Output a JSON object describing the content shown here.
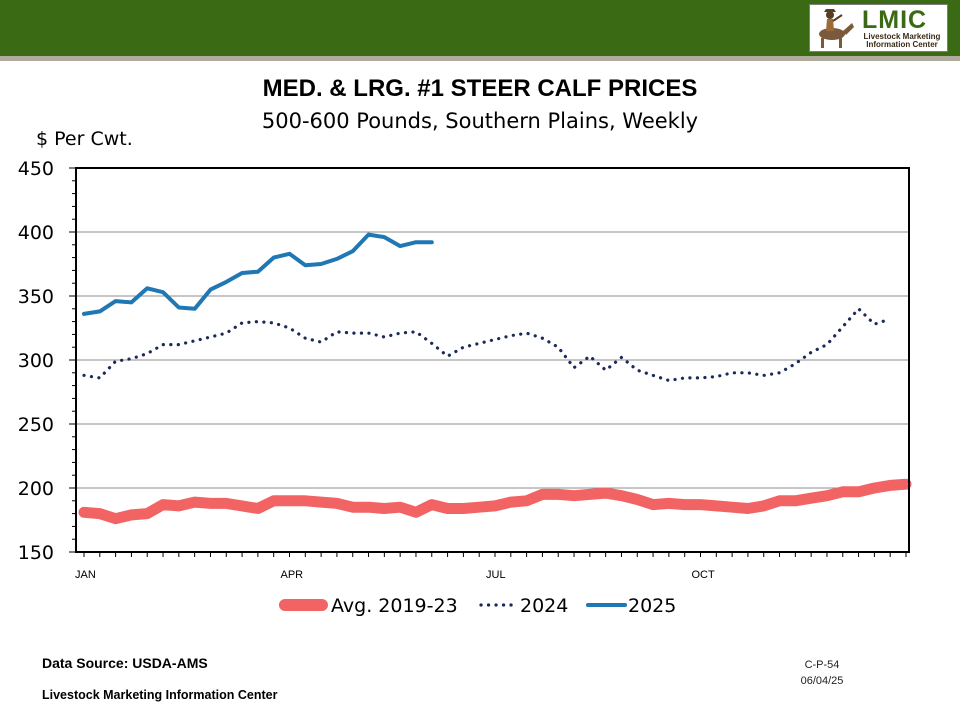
{
  "header": {
    "logo_text": "LMIC",
    "logo_subtitle": "Livestock Marketing Information Center",
    "bar_color": "#3b6a14"
  },
  "chart_data": {
    "type": "line",
    "title": "MED. & LRG. #1 STEER CALF PRICES",
    "subtitle": "500-600 Pounds, Southern Plains, Weekly",
    "ylabel": "$ Per Cwt.",
    "xlabel": "",
    "ylim": [
      150,
      450
    ],
    "yticks": [
      150,
      200,
      250,
      300,
      350,
      400,
      450
    ],
    "xlim": [
      1,
      53
    ],
    "xticks": [
      {
        "label": "JAN",
        "week": 1
      },
      {
        "label": "APR",
        "week": 14
      },
      {
        "label": "JUL",
        "week": 27
      },
      {
        "label": "OCT",
        "week": 40
      }
    ],
    "grid": true,
    "legend_position": "bottom",
    "series": [
      {
        "name": "Avg. 2019-23",
        "style": "thick-solid",
        "color": "#f26464",
        "x": [
          1,
          2,
          3,
          4,
          5,
          6,
          7,
          8,
          9,
          10,
          11,
          12,
          13,
          14,
          15,
          16,
          17,
          18,
          19,
          20,
          21,
          22,
          23,
          24,
          25,
          26,
          27,
          28,
          29,
          30,
          31,
          32,
          33,
          34,
          35,
          36,
          37,
          38,
          39,
          40,
          41,
          42,
          43,
          44,
          45,
          46,
          47,
          48,
          49,
          50,
          51,
          52,
          53
        ],
        "values": [
          181,
          180,
          176,
          179,
          180,
          187,
          186,
          189,
          188,
          188,
          186,
          184,
          190,
          190,
          190,
          189,
          188,
          185,
          185,
          184,
          185,
          181,
          187,
          184,
          184,
          185,
          186,
          189,
          190,
          195,
          195,
          194,
          195,
          196,
          194,
          191,
          187,
          188,
          187,
          187,
          186,
          185,
          184,
          186,
          190,
          190,
          192,
          194,
          197,
          197,
          200,
          202,
          203
        ]
      },
      {
        "name": "2024",
        "style": "dotted",
        "color": "#1c2a5a",
        "x": [
          1,
          2,
          3,
          4,
          5,
          6,
          7,
          8,
          9,
          10,
          11,
          12,
          13,
          14,
          15,
          16,
          17,
          18,
          19,
          20,
          21,
          22,
          23,
          24,
          25,
          26,
          27,
          28,
          29,
          30,
          31,
          32,
          33,
          34,
          35,
          36,
          37,
          38,
          39,
          40,
          41,
          42,
          43,
          44,
          45,
          46,
          47,
          48,
          49,
          50,
          51,
          52
        ],
        "values": [
          288,
          286,
          299,
          301,
          305,
          312,
          312,
          315,
          318,
          321,
          329,
          330,
          329,
          325,
          317,
          314,
          322,
          321,
          321,
          318,
          321,
          322,
          313,
          303,
          310,
          313,
          316,
          319,
          321,
          317,
          310,
          294,
          303,
          292,
          302,
          292,
          288,
          284,
          286,
          286,
          287,
          290,
          290,
          288,
          290,
          297,
          306,
          312,
          326,
          340,
          328,
          332
        ]
      },
      {
        "name": "2025",
        "style": "solid",
        "color": "#1f77b4",
        "x": [
          1,
          2,
          3,
          4,
          5,
          6,
          7,
          8,
          9,
          10,
          11,
          12,
          13,
          14,
          15,
          16,
          17,
          18,
          19,
          20,
          21,
          22,
          23
        ],
        "values": [
          336,
          338,
          346,
          345,
          356,
          353,
          341,
          340,
          355,
          361,
          368,
          369,
          380,
          383,
          374,
          375,
          379,
          385,
          398,
          396,
          389,
          392,
          392
        ]
      }
    ]
  },
  "footer": {
    "source": "Data Source:  USDA-AMS",
    "organization": "Livestock Marketing Information Center",
    "chart_code": "C-P-54",
    "date": "06/04/25"
  }
}
